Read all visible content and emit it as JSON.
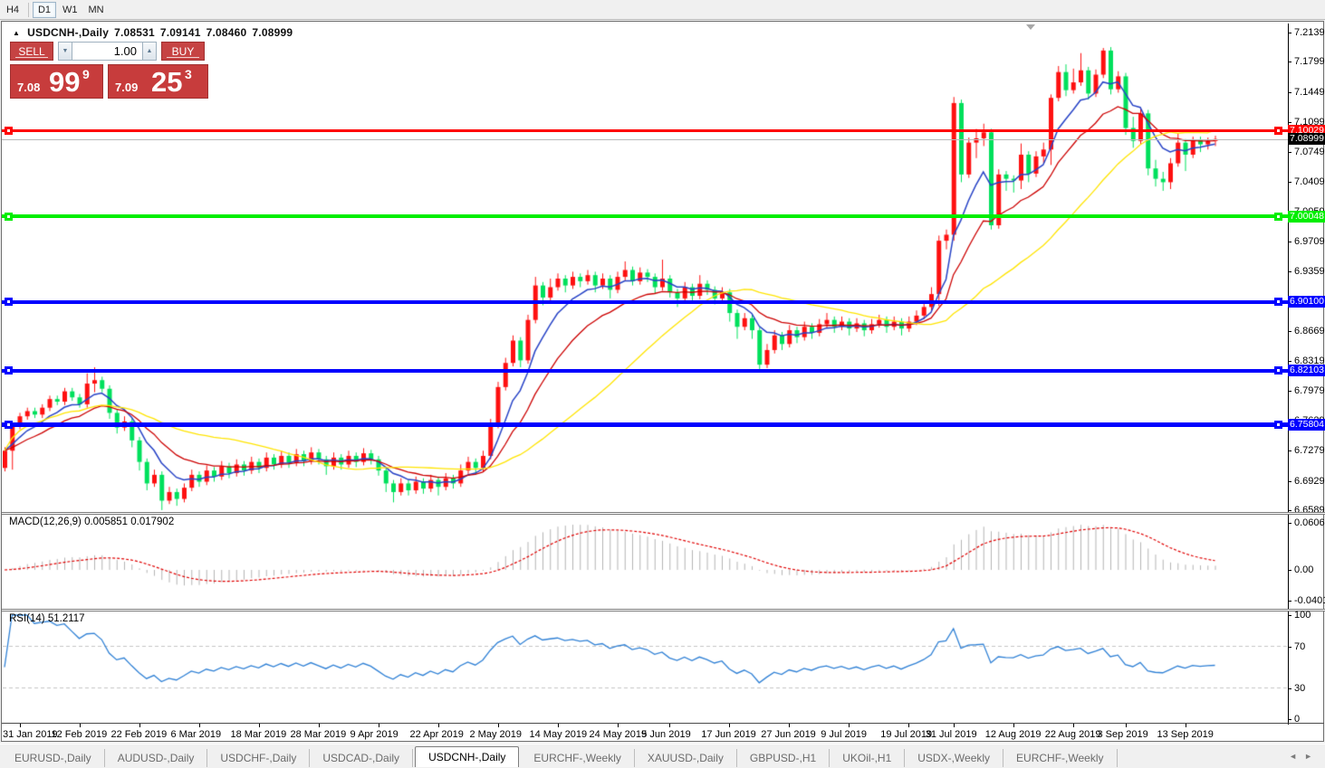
{
  "toolbar": {
    "timeframes": [
      "H4",
      "D1",
      "W1",
      "MN"
    ],
    "active_timeframe": "D1"
  },
  "chart_header": {
    "collapse_icon": "▲",
    "title": "USDCNH-,Daily",
    "open": "7.08531",
    "high": "7.09141",
    "low": "7.08460",
    "close": "7.08999"
  },
  "trade_panel": {
    "sell_label": "SELL",
    "buy_label": "BUY",
    "volume": "1.00",
    "spin_down_icon": "▼",
    "spin_up_icon": "▲",
    "sell_price": {
      "small": "7.08",
      "big": "99",
      "sup": "9"
    },
    "buy_price": {
      "small": "7.09",
      "big": "25",
      "sup": "3"
    },
    "panel_color": "#c64343"
  },
  "colors": {
    "candle_up": "#fe1010",
    "candle_down": "#00e05c",
    "ma_fast": "#2743c6",
    "ma_mid": "#cc0000",
    "ma_slow": "#ffe400",
    "macd_hist": "#b4b4b4",
    "macd_signal": "#e00000",
    "rsi_line": "#2f80d5",
    "current_price_line": "#b8b8b8"
  },
  "chart_data": {
    "type": "candlestick",
    "symbol": "USDCNH-",
    "timeframe": "Daily",
    "price_ylim": [
      6.6568,
      7.2244
    ],
    "price_ticks": [
      7.2139,
      7.1799,
      7.1449,
      7.1099,
      7.0749,
      7.0409,
      7.0059,
      6.9709,
      6.9359,
      6.9009,
      6.8669,
      6.8319,
      6.7979,
      6.7629,
      6.7279,
      6.6929,
      6.6589
    ],
    "levels": [
      {
        "price": 7.10029,
        "label": "7.10029",
        "color": "#ff0000",
        "thickness": 3,
        "name": "resistance-line"
      },
      {
        "price": 7.00048,
        "label": "7.00048",
        "color": "#00ee00",
        "thickness": 4,
        "name": "support-line-7.00"
      },
      {
        "price": 6.901,
        "label": "6.90100",
        "color": "#0000ff",
        "thickness": 4,
        "name": "support-line-6.90"
      },
      {
        "price": 6.82103,
        "label": "6.82103",
        "color": "#0000ff",
        "thickness": 4,
        "name": "support-line-6.82"
      },
      {
        "price": 6.75804,
        "label": "6.75804",
        "color": "#0000ff",
        "thickness": 5,
        "name": "support-line-6.75"
      }
    ],
    "current_price": {
      "price": 7.08999,
      "label": "7.08999",
      "badge_bg": "#000000"
    },
    "moving_averages": [
      {
        "period": 7,
        "color": "#2743c6"
      },
      {
        "period": 15,
        "color": "#cc0000"
      },
      {
        "period": 30,
        "color": "#ffe400"
      }
    ],
    "date_labels": [
      "31 Jan 2019",
      "12 Feb 2019",
      "22 Feb 2019",
      "6 Mar 2019",
      "18 Mar 2019",
      "28 Mar 2019",
      "9 Apr 2019",
      "22 Apr 2019",
      "2 May 2019",
      "14 May 2019",
      "24 May 2019",
      "5 Jun 2019",
      "17 Jun 2019",
      "27 Jun 2019",
      "9 Jul 2019",
      "19 Jul 2019",
      "31 Jul 2019",
      "12 Aug 2019",
      "22 Aug 2019",
      "3 Sep 2019",
      "13 Sep 2019"
    ],
    "date_label_indices": [
      2,
      10,
      18,
      26,
      34,
      42,
      50,
      58,
      66,
      74,
      82,
      89,
      97,
      105,
      113,
      121,
      127,
      135,
      143,
      150,
      158
    ],
    "macd": {
      "label": "MACD(12,26,9)",
      "fast": 12,
      "slow": 26,
      "signal": 9,
      "display_values": "0.005851 0.017902",
      "ticks": [
        {
          "v": 0.060674,
          "label": "0.060674"
        },
        {
          "v": 0,
          "label": "0.00"
        },
        {
          "v": -0.040152,
          "label": "-0.040152"
        }
      ],
      "ylim": [
        -0.0502,
        0.0712
      ]
    },
    "rsi": {
      "label": "RSI(14)",
      "period": 14,
      "display_value": "51.2117",
      "ticks": [
        {
          "v": 100,
          "label": "100"
        },
        {
          "v": 70,
          "label": "70"
        },
        {
          "v": 30,
          "label": "30"
        },
        {
          "v": 0,
          "label": "0"
        }
      ],
      "levels": [
        70,
        30
      ],
      "ylim": [
        0,
        100
      ]
    },
    "candles": [
      [
        6.708,
        6.732,
        6.704,
        6.728
      ],
      [
        6.728,
        6.761,
        6.706,
        6.757
      ],
      [
        6.757,
        6.772,
        6.753,
        6.768
      ],
      [
        6.768,
        6.778,
        6.764,
        6.774
      ],
      [
        6.774,
        6.778,
        6.766,
        6.77
      ],
      [
        6.77,
        6.782,
        6.766,
        6.778
      ],
      [
        6.778,
        6.792,
        6.774,
        6.788
      ],
      [
        6.788,
        6.792,
        6.781,
        6.785
      ],
      [
        6.785,
        6.801,
        6.781,
        6.797
      ],
      [
        6.797,
        6.801,
        6.786,
        6.79
      ],
      [
        6.79,
        6.794,
        6.778,
        6.782
      ],
      [
        6.782,
        6.818,
        6.778,
        6.806
      ],
      [
        6.806,
        6.825,
        6.796,
        6.81
      ],
      [
        6.81,
        6.814,
        6.796,
        6.8
      ],
      [
        6.8,
        6.804,
        6.765,
        6.772
      ],
      [
        6.772,
        6.776,
        6.748,
        6.755
      ],
      [
        6.755,
        6.768,
        6.751,
        6.762
      ],
      [
        6.762,
        6.766,
        6.732,
        6.74
      ],
      [
        6.74,
        6.744,
        6.705,
        6.715
      ],
      [
        6.715,
        6.719,
        6.682,
        6.69
      ],
      [
        6.69,
        6.706,
        6.686,
        6.7
      ],
      [
        6.7,
        6.704,
        6.659,
        6.67
      ],
      [
        6.67,
        6.686,
        6.666,
        6.68
      ],
      [
        6.68,
        6.684,
        6.664,
        6.672
      ],
      [
        6.672,
        6.69,
        6.668,
        6.685
      ],
      [
        6.685,
        6.706,
        6.681,
        6.7
      ],
      [
        6.7,
        6.704,
        6.686,
        6.692
      ],
      [
        6.692,
        6.711,
        6.688,
        6.705
      ],
      [
        6.705,
        6.709,
        6.692,
        6.698
      ],
      [
        6.698,
        6.716,
        6.694,
        6.71
      ],
      [
        6.71,
        6.714,
        6.696,
        6.702
      ],
      [
        6.702,
        6.718,
        6.698,
        6.712
      ],
      [
        6.712,
        6.716,
        6.699,
        6.705
      ],
      [
        6.705,
        6.721,
        6.701,
        6.715
      ],
      [
        6.715,
        6.719,
        6.702,
        6.708
      ],
      [
        6.708,
        6.726,
        6.704,
        6.72
      ],
      [
        6.72,
        6.724,
        6.706,
        6.712
      ],
      [
        6.712,
        6.728,
        6.708,
        6.722
      ],
      [
        6.722,
        6.726,
        6.708,
        6.714
      ],
      [
        6.714,
        6.73,
        6.71,
        6.724
      ],
      [
        6.724,
        6.728,
        6.71,
        6.716
      ],
      [
        6.716,
        6.732,
        6.712,
        6.726
      ],
      [
        6.726,
        6.73,
        6.712,
        6.718
      ],
      [
        6.718,
        6.722,
        6.7,
        6.71
      ],
      [
        6.71,
        6.726,
        6.706,
        6.72
      ],
      [
        6.72,
        6.724,
        6.706,
        6.712
      ],
      [
        6.712,
        6.728,
        6.708,
        6.722
      ],
      [
        6.722,
        6.726,
        6.709,
        6.715
      ],
      [
        6.715,
        6.731,
        6.711,
        6.725
      ],
      [
        6.725,
        6.729,
        6.712,
        6.718
      ],
      [
        6.718,
        6.722,
        6.699,
        6.705
      ],
      [
        6.705,
        6.709,
        6.68,
        6.69
      ],
      [
        6.69,
        6.694,
        6.668,
        6.68
      ],
      [
        6.68,
        6.696,
        6.676,
        6.69
      ],
      [
        6.69,
        6.694,
        6.676,
        6.682
      ],
      [
        6.682,
        6.698,
        6.678,
        6.692
      ],
      [
        6.692,
        6.696,
        6.678,
        6.684
      ],
      [
        6.684,
        6.7,
        6.68,
        6.694
      ],
      [
        6.694,
        6.698,
        6.676,
        6.686
      ],
      [
        6.686,
        6.702,
        6.682,
        6.696
      ],
      [
        6.696,
        6.7,
        6.684,
        6.69
      ],
      [
        6.69,
        6.712,
        6.686,
        6.705
      ],
      [
        6.705,
        6.721,
        6.701,
        6.715
      ],
      [
        6.715,
        6.719,
        6.7,
        6.708
      ],
      [
        6.708,
        6.728,
        6.704,
        6.722
      ],
      [
        6.722,
        6.765,
        6.718,
        6.758
      ],
      [
        6.758,
        6.808,
        6.754,
        6.802
      ],
      [
        6.802,
        6.836,
        6.798,
        6.83
      ],
      [
        6.83,
        6.862,
        6.826,
        6.856
      ],
      [
        6.856,
        6.86,
        6.825,
        6.833
      ],
      [
        6.833,
        6.886,
        6.829,
        6.88
      ],
      [
        6.88,
        6.93,
        6.876,
        6.92
      ],
      [
        6.92,
        6.924,
        6.897,
        6.906
      ],
      [
        6.906,
        6.928,
        6.902,
        6.918
      ],
      [
        6.918,
        6.934,
        6.914,
        6.928
      ],
      [
        6.928,
        6.932,
        6.912,
        6.92
      ],
      [
        6.92,
        6.936,
        6.916,
        6.93
      ],
      [
        6.93,
        6.934,
        6.918,
        6.925
      ],
      [
        6.925,
        6.938,
        6.921,
        6.932
      ],
      [
        6.932,
        6.936,
        6.912,
        6.92
      ],
      [
        6.92,
        6.934,
        6.916,
        6.928
      ],
      [
        6.928,
        6.932,
        6.905,
        6.915
      ],
      [
        6.915,
        6.936,
        6.911,
        6.93
      ],
      [
        6.93,
        6.948,
        6.926,
        6.938
      ],
      [
        6.938,
        6.942,
        6.92,
        6.925
      ],
      [
        6.925,
        6.941,
        6.921,
        6.935
      ],
      [
        6.935,
        6.939,
        6.924,
        6.93
      ],
      [
        6.93,
        6.934,
        6.91,
        6.918
      ],
      [
        6.918,
        6.95,
        6.914,
        6.928
      ],
      [
        6.928,
        6.932,
        6.906,
        6.912
      ],
      [
        6.912,
        6.916,
        6.895,
        6.905
      ],
      [
        6.905,
        6.924,
        6.901,
        6.918
      ],
      [
        6.918,
        6.922,
        6.902,
        6.908
      ],
      [
        6.908,
        6.932,
        6.904,
        6.922
      ],
      [
        6.922,
        6.926,
        6.909,
        6.915
      ],
      [
        6.915,
        6.919,
        6.898,
        6.905
      ],
      [
        6.905,
        6.918,
        6.901,
        6.912
      ],
      [
        6.912,
        6.916,
        6.878,
        6.888
      ],
      [
        6.888,
        6.892,
        6.858,
        6.872
      ],
      [
        6.872,
        6.888,
        6.868,
        6.882
      ],
      [
        6.882,
        6.886,
        6.858,
        6.868
      ],
      [
        6.868,
        6.872,
        6.82,
        6.828
      ],
      [
        6.828,
        6.852,
        6.824,
        6.845
      ],
      [
        6.845,
        6.868,
        6.841,
        6.862
      ],
      [
        6.862,
        6.866,
        6.845,
        6.852
      ],
      [
        6.852,
        6.874,
        6.848,
        6.868
      ],
      [
        6.868,
        6.872,
        6.853,
        6.86
      ],
      [
        6.86,
        6.878,
        6.856,
        6.872
      ],
      [
        6.872,
        6.876,
        6.858,
        6.865
      ],
      [
        6.865,
        6.881,
        6.861,
        6.875
      ],
      [
        6.875,
        6.888,
        6.871,
        6.88
      ],
      [
        6.88,
        6.884,
        6.865,
        6.872
      ],
      [
        6.872,
        6.884,
        6.868,
        6.878
      ],
      [
        6.878,
        6.882,
        6.862,
        6.87
      ],
      [
        6.87,
        6.882,
        6.866,
        6.876
      ],
      [
        6.876,
        6.88,
        6.861,
        6.868
      ],
      [
        6.868,
        6.881,
        6.864,
        6.875
      ],
      [
        6.875,
        6.886,
        6.871,
        6.88
      ],
      [
        6.88,
        6.884,
        6.865,
        6.872
      ],
      [
        6.872,
        6.884,
        6.868,
        6.878
      ],
      [
        6.878,
        6.882,
        6.862,
        6.87
      ],
      [
        6.87,
        6.884,
        6.866,
        6.878
      ],
      [
        6.878,
        6.891,
        6.874,
        6.885
      ],
      [
        6.885,
        6.901,
        6.881,
        6.895
      ],
      [
        6.895,
        6.918,
        6.89,
        6.91
      ],
      [
        6.91,
        6.978,
        6.896,
        6.972
      ],
      [
        6.972,
        6.985,
        6.962,
        6.979
      ],
      [
        6.979,
        7.139,
        6.972,
        7.132
      ],
      [
        7.132,
        7.136,
        7.04,
        7.049
      ],
      [
        7.049,
        7.092,
        7.045,
        7.086
      ],
      [
        7.086,
        7.102,
        7.068,
        7.091
      ],
      [
        7.091,
        7.108,
        7.082,
        7.098
      ],
      [
        7.098,
        7.102,
        6.985,
        6.99
      ],
      [
        6.99,
        7.055,
        6.986,
        7.049
      ],
      [
        7.049,
        7.053,
        7.03,
        7.044
      ],
      [
        7.044,
        7.048,
        7.028,
        7.042
      ],
      [
        7.042,
        7.085,
        7.032,
        7.072
      ],
      [
        7.072,
        7.076,
        7.04,
        7.05
      ],
      [
        7.05,
        7.076,
        7.046,
        7.07
      ],
      [
        7.07,
        7.086,
        7.062,
        7.078
      ],
      [
        7.078,
        7.142,
        7.06,
        7.138
      ],
      [
        7.138,
        7.175,
        7.134,
        7.168
      ],
      [
        7.168,
        7.177,
        7.14,
        7.147
      ],
      [
        7.147,
        7.172,
        7.143,
        7.156
      ],
      [
        7.156,
        7.19,
        7.152,
        7.17
      ],
      [
        7.17,
        7.174,
        7.136,
        7.143
      ],
      [
        7.143,
        7.171,
        7.139,
        7.165
      ],
      [
        7.165,
        7.196,
        7.161,
        7.193
      ],
      [
        7.193,
        7.197,
        7.142,
        7.148
      ],
      [
        7.148,
        7.169,
        7.144,
        7.163
      ],
      [
        7.163,
        7.167,
        7.095,
        7.103
      ],
      [
        7.103,
        7.116,
        7.08,
        7.088
      ],
      [
        7.088,
        7.126,
        7.084,
        7.12
      ],
      [
        7.12,
        7.124,
        7.048,
        7.056
      ],
      [
        7.056,
        7.066,
        7.035,
        7.044
      ],
      [
        7.044,
        7.052,
        7.03,
        7.04
      ],
      [
        7.04,
        7.068,
        7.032,
        7.062
      ],
      [
        7.062,
        7.097,
        7.058,
        7.086
      ],
      [
        7.086,
        7.09,
        7.053,
        7.072
      ],
      [
        7.072,
        7.093,
        7.068,
        7.089
      ],
      [
        7.089,
        7.093,
        7.075,
        7.084
      ],
      [
        7.084,
        7.092,
        7.078,
        7.088
      ],
      [
        7.088,
        7.094,
        7.082,
        7.09
      ]
    ]
  },
  "tabs": {
    "items": [
      {
        "label": "EURUSD-,Daily",
        "active": false
      },
      {
        "label": "AUDUSD-,Daily",
        "active": false
      },
      {
        "label": "USDCHF-,Daily",
        "active": false
      },
      {
        "label": "USDCAD-,Daily",
        "active": false
      },
      {
        "label": "USDCNH-,Daily",
        "active": true
      },
      {
        "label": "EURCHF-,Weekly",
        "active": false
      },
      {
        "label": "XAUUSD-,Daily",
        "active": false
      },
      {
        "label": "GBPUSD-,H1",
        "active": false
      },
      {
        "label": "UKOil-,H1",
        "active": false
      },
      {
        "label": "USDX-,Weekly",
        "active": false
      },
      {
        "label": "EURCHF-,Weekly",
        "active": false
      }
    ],
    "scroll_left_icon": "◄",
    "scroll_right_icon": "►"
  }
}
